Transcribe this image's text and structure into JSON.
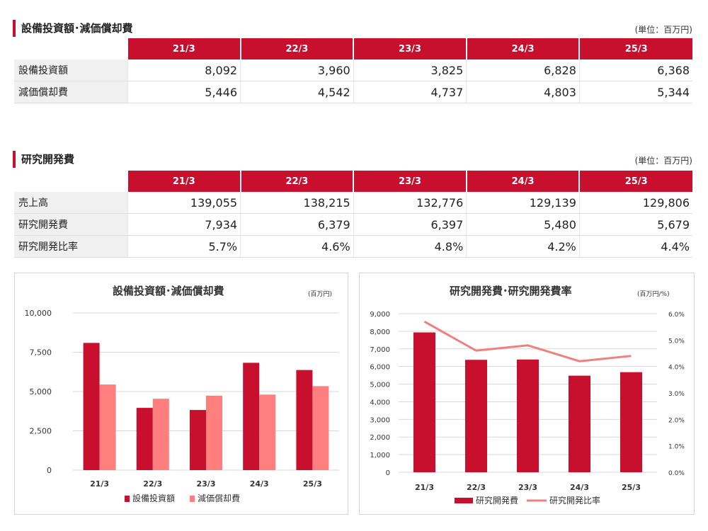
{
  "capex_section": {
    "title": "設備投資額･減価償却費",
    "unit": "(単位：百万円)",
    "headers": [
      "21/3",
      "22/3",
      "23/3",
      "24/3",
      "25/3"
    ],
    "rows": [
      {
        "label": "設備投資額",
        "values": [
          "8,092",
          "3,960",
          "3,825",
          "6,828",
          "6,368"
        ]
      },
      {
        "label": "減価償却費",
        "values": [
          "5,446",
          "4,542",
          "4,737",
          "4,803",
          "5,344"
        ]
      }
    ]
  },
  "rd_section": {
    "title": "研究開発費",
    "unit": "(単位：百万円)",
    "headers": [
      "21/3",
      "22/3",
      "23/3",
      "24/3",
      "25/3"
    ],
    "rows": [
      {
        "label": "売上高",
        "values": [
          "139,055",
          "138,215",
          "132,776",
          "129,139",
          "129,806"
        ]
      },
      {
        "label": "研究開発費",
        "values": [
          "7,934",
          "6,379",
          "6,397",
          "5,480",
          "5,679"
        ]
      },
      {
        "label": "研究開発比率",
        "values": [
          "5.7%",
          "4.6%",
          "4.8%",
          "4.2%",
          "4.4%"
        ]
      }
    ]
  },
  "colors": {
    "primary": "#c8102e",
    "secondary": "#ff7f7f",
    "line": "#f08080"
  },
  "chart_data": [
    {
      "type": "bar",
      "title": "設備投資額･減価償却費",
      "unit_label": "(百万円)",
      "categories": [
        "21/3",
        "22/3",
        "23/3",
        "24/3",
        "25/3"
      ],
      "series": [
        {
          "name": "設備投資額",
          "values": [
            8092,
            3960,
            3825,
            6828,
            6368
          ]
        },
        {
          "name": "減価償却費",
          "values": [
            5446,
            4542,
            4737,
            4803,
            5344
          ]
        }
      ],
      "ylim": [
        0,
        10000
      ],
      "yticks": [
        "0",
        "2,500",
        "5,000",
        "7,500",
        "10,000"
      ],
      "ytick_values": [
        0,
        2500,
        5000,
        7500,
        10000
      ],
      "grid": true,
      "legend": "bottom"
    },
    {
      "type": "bar",
      "title": "研究開発費･研究開発費率",
      "unit_label": "(百万円/%)",
      "categories": [
        "21/3",
        "22/3",
        "23/3",
        "24/3",
        "25/3"
      ],
      "series": [
        {
          "name": "研究開発費",
          "type": "bar",
          "axis": "left",
          "values": [
            7934,
            6379,
            6397,
            5480,
            5679
          ]
        },
        {
          "name": "研究開発比率",
          "type": "line",
          "axis": "right",
          "values": [
            5.7,
            4.6,
            4.8,
            4.2,
            4.4
          ]
        }
      ],
      "ylim": [
        0,
        9000
      ],
      "yticks": [
        "0",
        "1,000",
        "2,000",
        "3,000",
        "4,000",
        "5,000",
        "6,000",
        "7,000",
        "8,000",
        "9,000"
      ],
      "ytick_values": [
        0,
        1000,
        2000,
        3000,
        4000,
        5000,
        6000,
        7000,
        8000,
        9000
      ],
      "y2lim": [
        0,
        6
      ],
      "y2ticks": [
        "0.0%",
        "1.0%",
        "2.0%",
        "3.0%",
        "4.0%",
        "5.0%",
        "6.0%"
      ],
      "y2tick_values": [
        0,
        1,
        2,
        3,
        4,
        5,
        6
      ],
      "grid": true,
      "legend": "bottom"
    }
  ]
}
